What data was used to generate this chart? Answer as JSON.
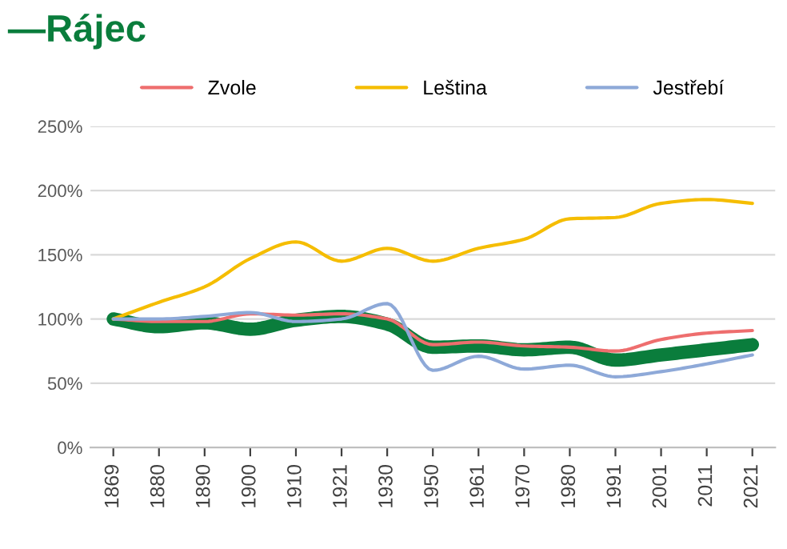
{
  "chart_data": {
    "type": "line",
    "title": "—Rájec",
    "categories": [
      "1869",
      "1880",
      "1890",
      "1900",
      "1910",
      "1921",
      "1930",
      "1950",
      "1961",
      "1970",
      "1980",
      "1991",
      "2001",
      "2011",
      "2021"
    ],
    "series": [
      {
        "color": "#0a7d3c",
        "values": [
          100,
          94,
          97,
          92,
          99,
          102,
          96,
          78,
          79,
          76,
          78,
          68,
          72,
          76,
          80
        ]
      },
      {
        "name": "Zvole",
        "color": "#ee6e6e",
        "values": [
          100,
          98,
          98,
          104,
          103,
          104,
          100,
          80,
          82,
          79,
          78,
          75,
          84,
          89,
          91
        ]
      },
      {
        "name": "Leština",
        "color": "#f5bd00",
        "values": [
          100,
          113,
          125,
          147,
          160,
          145,
          155,
          145,
          155,
          162,
          178,
          179,
          190,
          193,
          190
        ]
      },
      {
        "name": "Jestřebí",
        "color": "#8ea9d8",
        "values": [
          100,
          100,
          102,
          105,
          98,
          100,
          112,
          60,
          71,
          61,
          64,
          55,
          59,
          65,
          72
        ]
      }
    ],
    "ylim": [
      0,
      250
    ],
    "yticks": [
      {
        "value": 0,
        "label": "0%"
      },
      {
        "value": 50,
        "label": "50%"
      },
      {
        "value": 100,
        "label": "100%"
      },
      {
        "value": 150,
        "label": "150%"
      },
      {
        "value": 200,
        "label": "200%"
      },
      {
        "value": 250,
        "label": "250%"
      }
    ],
    "grid": "y",
    "legend": "top"
  }
}
